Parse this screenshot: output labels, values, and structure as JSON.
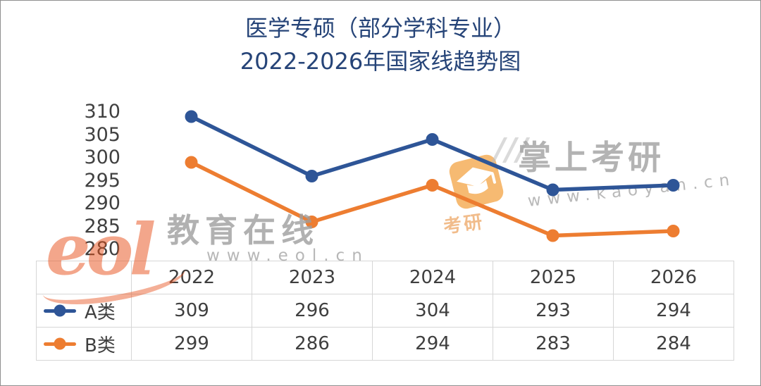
{
  "title": {
    "line1": "医学专硕（部分学科专业）",
    "line2": "2022-2026年国家线趋势图"
  },
  "chart_data": {
    "type": "line",
    "title": "医学专硕（部分学科专业）2022-2026年国家线趋势图",
    "categories": [
      "2022",
      "2023",
      "2024",
      "2025",
      "2026"
    ],
    "series": [
      {
        "name": "A类",
        "color": "#2E5597",
        "values": [
          309,
          296,
          304,
          293,
          294
        ]
      },
      {
        "name": "B类",
        "color": "#ED7D31",
        "values": [
          299,
          286,
          294,
          283,
          284
        ]
      }
    ],
    "ylim": [
      280,
      310
    ],
    "yticks": [
      310,
      305,
      300,
      295,
      290,
      285,
      280
    ],
    "grid": false,
    "legend_position": "table-left"
  },
  "colors": {
    "title_text": "#264478",
    "axis_text": "#404040",
    "table_border": "#D6D6D6",
    "series_a": "#2E5597",
    "series_b": "#ED7D31"
  },
  "watermarks": {
    "eol_logo": "eol",
    "eol_name": "教育在线",
    "eol_url": "www.eol.cn",
    "kaoyan_badge": "考研",
    "kaoyan_slashes": "///",
    "kaoyan_name": "掌上考研",
    "kaoyan_url": "www.kaoyan.cn"
  }
}
